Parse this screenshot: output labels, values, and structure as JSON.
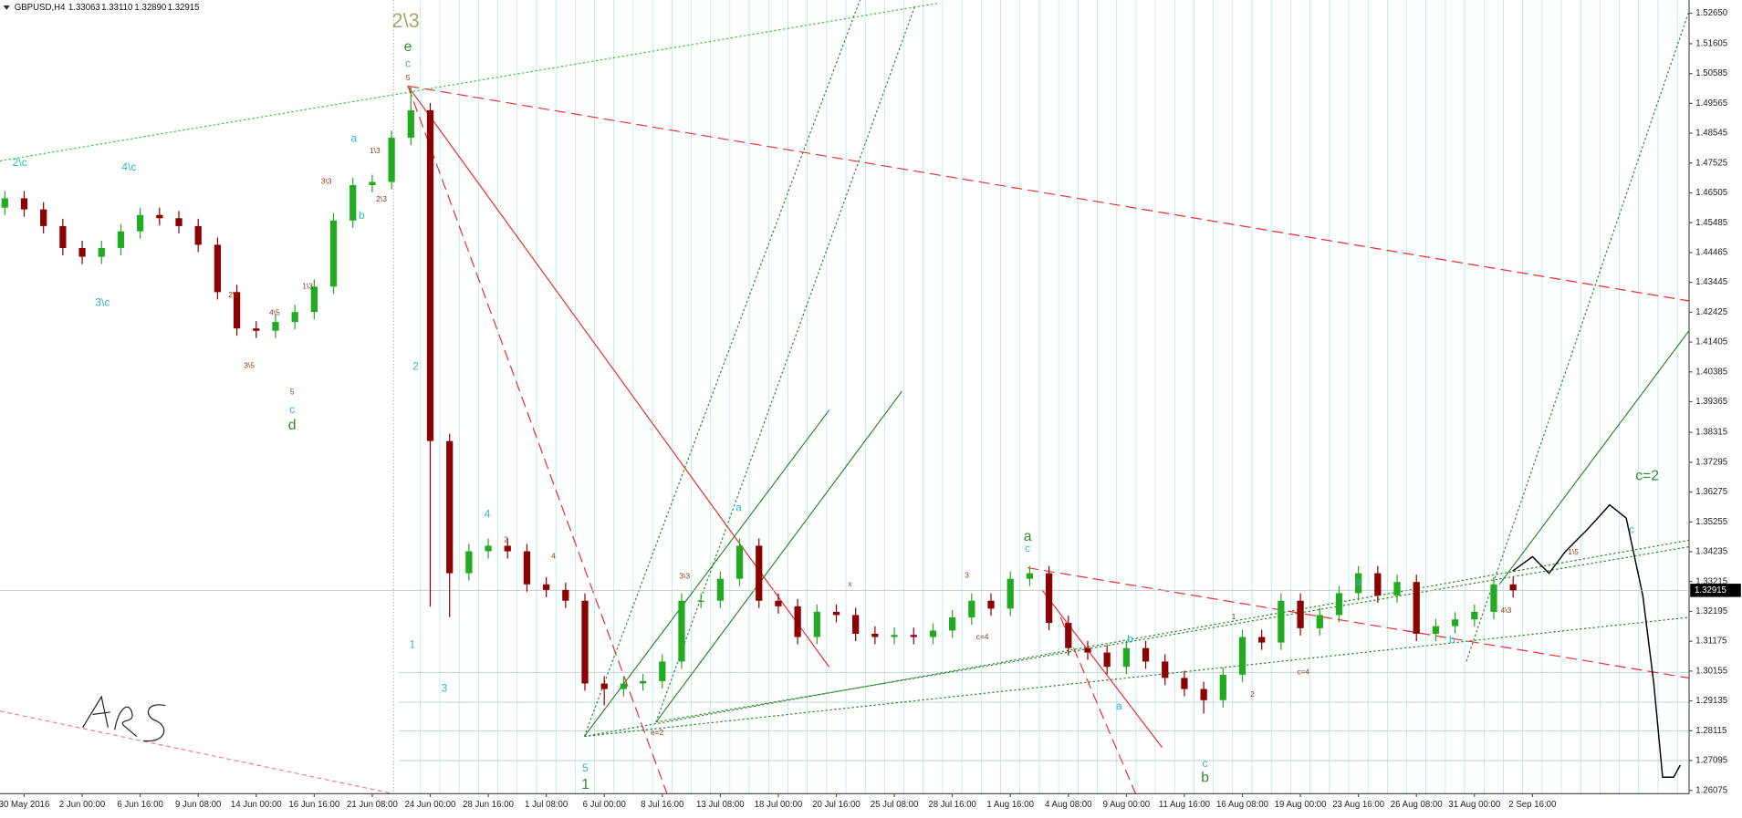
{
  "header": {
    "symbol": "GBPUSD,H4",
    "ohlc": [
      "1.33063",
      "1.33110",
      "1.32890",
      "1.32915"
    ]
  },
  "chart_data": {
    "type": "candlestick",
    "up_color": "#22aa22",
    "down_color": "#8b0000",
    "grid": true,
    "x": [
      -1,
      0,
      1,
      2,
      3,
      4,
      5,
      6,
      7,
      8,
      9,
      10,
      11,
      12,
      13,
      14,
      15,
      16,
      17,
      18,
      19,
      20,
      21,
      22,
      23,
      24,
      25,
      26,
      27,
      28,
      29,
      30,
      31,
      32,
      33,
      34,
      35,
      36,
      37,
      38,
      39,
      40,
      41,
      42,
      43,
      44,
      45,
      46,
      47,
      48,
      49,
      50,
      51,
      52,
      53,
      54,
      55,
      56,
      57,
      58,
      59,
      60,
      61,
      62,
      63,
      64,
      65,
      66,
      67,
      68,
      69,
      70,
      71,
      72,
      73,
      74,
      75,
      76,
      77
    ],
    "open": [
      1.46,
      1.4632,
      1.4594,
      1.4537,
      1.4462,
      1.4432,
      1.4462,
      1.4519,
      1.4575,
      1.4564,
      1.4537,
      1.4473,
      1.4311,
      1.4187,
      1.4179,
      1.4209,
      1.4243,
      1.433,
      1.4556,
      1.4677,
      1.4688,
      1.4839,
      1.4933,
      1.3802,
      1.335,
      1.3425,
      1.3444,
      1.3425,
      1.3312,
      1.3293,
      1.3256,
      1.2973,
      1.2954,
      1.2973,
      1.2981,
      1.3048,
      1.3256,
      1.3256,
      1.3331,
      1.3444,
      1.3256,
      1.3237,
      1.3132,
      1.3218,
      1.3207,
      1.3143,
      1.3132,
      1.3139,
      1.3132,
      1.3154,
      1.3199,
      1.3256,
      1.3229,
      1.3331,
      1.335,
      1.318,
      1.3094,
      1.3079,
      1.303,
      1.3094,
      1.3048,
      1.2992,
      1.2954,
      1.2916,
      1.3003,
      1.3132,
      1.3113,
      1.3256,
      1.3162,
      1.3207,
      1.3282,
      1.335,
      1.3274,
      1.332,
      1.3143,
      1.3169,
      1.3192,
      1.3218,
      1.3312
    ],
    "high": [
      1.4657,
      1.4657,
      1.4619,
      1.4562,
      1.4487,
      1.4487,
      1.4544,
      1.46,
      1.46,
      1.4589,
      1.4562,
      1.4498,
      1.4336,
      1.4212,
      1.4234,
      1.4268,
      1.4355,
      1.4581,
      1.4702,
      1.4713,
      1.4864,
      1.5012,
      1.4958,
      1.3827,
      1.345,
      1.3469,
      1.3469,
      1.345,
      1.3337,
      1.3318,
      1.3281,
      1.2998,
      1.2998,
      1.3006,
      1.3073,
      1.3281,
      1.3281,
      1.3356,
      1.3469,
      1.3469,
      1.3281,
      1.3262,
      1.3243,
      1.3243,
      1.3232,
      1.3168,
      1.3164,
      1.3164,
      1.3179,
      1.3224,
      1.3281,
      1.3281,
      1.3356,
      1.3375,
      1.3375,
      1.3205,
      1.3119,
      1.3104,
      1.3119,
      1.3119,
      1.3073,
      1.3017,
      1.2979,
      1.3028,
      1.3157,
      1.3157,
      1.3281,
      1.3281,
      1.3232,
      1.3307,
      1.3375,
      1.3375,
      1.3345,
      1.3345,
      1.3194,
      1.3217,
      1.3243,
      1.3337,
      1.3337
    ],
    "low": [
      1.4575,
      1.4569,
      1.4512,
      1.4437,
      1.4407,
      1.4407,
      1.4437,
      1.4494,
      1.4539,
      1.4512,
      1.4448,
      1.4286,
      1.4162,
      1.4154,
      1.4154,
      1.4184,
      1.4218,
      1.4305,
      1.4531,
      1.4652,
      1.4663,
      1.4814,
      1.3236,
      1.32,
      1.3325,
      1.34,
      1.34,
      1.3287,
      1.3268,
      1.3231,
      1.2948,
      1.2898,
      1.2929,
      1.2948,
      1.2956,
      1.3023,
      1.3231,
      1.3231,
      1.3306,
      1.3231,
      1.3212,
      1.3107,
      1.3107,
      1.3182,
      1.3118,
      1.3107,
      1.3107,
      1.3107,
      1.3107,
      1.3129,
      1.3174,
      1.3204,
      1.3204,
      1.3306,
      1.3155,
      1.3069,
      1.3054,
      1.3005,
      1.3005,
      1.3023,
      1.2967,
      1.2929,
      1.287,
      1.2891,
      1.2978,
      1.3088,
      1.3088,
      1.3137,
      1.3137,
      1.3182,
      1.3257,
      1.3249,
      1.3249,
      1.3118,
      1.3118,
      1.3144,
      1.3167,
      1.3193,
      1.3267
    ],
    "close": [
      1.4632,
      1.4594,
      1.4537,
      1.4462,
      1.4432,
      1.4462,
      1.4519,
      1.4575,
      1.4564,
      1.4537,
      1.4473,
      1.4311,
      1.4187,
      1.4179,
      1.4209,
      1.4243,
      1.433,
      1.4556,
      1.4677,
      1.4688,
      1.4839,
      1.4933,
      1.3802,
      1.335,
      1.3425,
      1.3444,
      1.3425,
      1.3312,
      1.3293,
      1.3256,
      1.2973,
      1.2954,
      1.2973,
      1.2981,
      1.3048,
      1.3256,
      1.3256,
      1.3331,
      1.3444,
      1.3256,
      1.3237,
      1.3132,
      1.3218,
      1.3207,
      1.3143,
      1.3132,
      1.3139,
      1.3132,
      1.3154,
      1.3199,
      1.3256,
      1.3229,
      1.3331,
      1.335,
      1.318,
      1.3094,
      1.3079,
      1.303,
      1.3094,
      1.3048,
      1.2992,
      1.2954,
      1.2916,
      1.3003,
      1.3132,
      1.3113,
      1.3256,
      1.3162,
      1.3207,
      1.3282,
      1.335,
      1.3274,
      1.332,
      1.3143,
      1.3169,
      1.3192,
      1.3218,
      1.3312,
      1.32915
    ],
    "xlim": [
      -1.25,
      86.1
    ],
    "ylim": [
      1.2596,
      1.531
    ],
    "xticks": [
      {
        "value": 0,
        "label": "30 May 2016"
      },
      {
        "value": 3,
        "label": "2 Jun 00:00"
      },
      {
        "value": 6,
        "label": "6 Jun 16:00"
      },
      {
        "value": 9,
        "label": "9 Jun 08:00"
      },
      {
        "value": 12,
        "label": "14 Jun 00:00"
      },
      {
        "value": 15,
        "label": "16 Jun 16:00"
      },
      {
        "value": 18,
        "label": "21 Jun 08:00"
      },
      {
        "value": 21,
        "label": "24 Jun 00:00"
      },
      {
        "value": 24,
        "label": "28 Jun 16:00"
      },
      {
        "value": 27,
        "label": "1 Jul 08:00"
      },
      {
        "value": 30,
        "label": "6 Jul 00:00"
      },
      {
        "value": 33,
        "label": "8 Jul 16:00"
      },
      {
        "value": 36,
        "label": "13 Jul 08:00"
      },
      {
        "value": 39,
        "label": "18 Jul 00:00"
      },
      {
        "value": 42,
        "label": "20 Jul 16:00"
      },
      {
        "value": 45,
        "label": "25 Jul 08:00"
      },
      {
        "value": 48,
        "label": "28 Jul 16:00"
      },
      {
        "value": 51,
        "label": "1 Aug 16:00"
      },
      {
        "value": 54,
        "label": "4 Aug 08:00"
      },
      {
        "value": 57,
        "label": "9 Aug 00:00"
      },
      {
        "value": 60,
        "label": "11 Aug 16:00"
      },
      {
        "value": 63,
        "label": "16 Aug 08:00"
      },
      {
        "value": 66,
        "label": "19 Aug 00:00"
      },
      {
        "value": 69,
        "label": "23 Aug 16:00"
      },
      {
        "value": 72,
        "label": "26 Aug 08:00"
      },
      {
        "value": 75,
        "label": "31 Aug 00:00"
      },
      {
        "value": 78,
        "label": "2 Sep 16:00"
      }
    ],
    "yticks": [
      {
        "value": 1.5265,
        "label": "1.52650"
      },
      1.51605,
      1.50585,
      1.49565,
      1.48545,
      1.47525,
      1.46505,
      1.45485,
      1.44465,
      1.43445,
      1.42425,
      1.41405,
      1.40385,
      1.39365,
      1.38315,
      1.37295,
      1.36275,
      1.35255,
      1.34235,
      1.33215,
      1.32195,
      1.31175,
      1.30155,
      1.29135,
      1.28115,
      1.27095,
      1.26075
    ],
    "current_price": {
      "value": 1.32915,
      "label": "1.32915"
    },
    "annotations": [
      "2\\3",
      "e",
      "c",
      "5",
      "2\\c",
      "4\\c",
      "3\\c",
      "d",
      "c",
      "5",
      "a",
      "b",
      "2",
      "4",
      "1",
      "3",
      "5",
      "1",
      "a",
      "a",
      "c",
      "b",
      "c",
      "a",
      "b",
      "a",
      "b",
      "c",
      "c=2",
      "c=4",
      "c=4",
      "e=2",
      "1\\5",
      "3\\3",
      "4\\3",
      "1\\3",
      "2\\3",
      "3\\3",
      "3\\5",
      "2\\5",
      "4\\5",
      "1\\3",
      "x",
      "3",
      "2",
      "4",
      "1",
      "2"
    ]
  }
}
